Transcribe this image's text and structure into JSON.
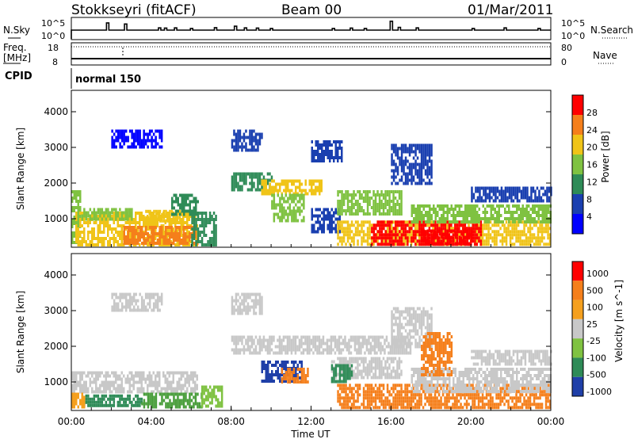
{
  "header": {
    "station": "Stokkseyri (fitACF)",
    "beam": "Beam 00",
    "date": "01/Mar/2011"
  },
  "chart_data": [
    {
      "type": "line",
      "panel": "nsky-nsearch",
      "left_label": "N.Sky",
      "right_label": "N.Search",
      "left_ticks": [
        "10^5",
        "10^0"
      ],
      "right_ticks": [
        "10^5",
        "10^0"
      ],
      "x_range_hours": [
        0,
        24
      ],
      "spike_hours": [
        1.8,
        2.7,
        4.4,
        4.7,
        5.2,
        6.0,
        7.2,
        8.2,
        8.7,
        9.3,
        10.0,
        13.1,
        14.0,
        14.7,
        16.0,
        16.4,
        17.3,
        20.1,
        21.7,
        23.4
      ],
      "spike_heights": [
        0.65,
        0.55,
        0.2,
        0.18,
        0.2,
        0.15,
        0.22,
        0.35,
        0.2,
        0.18,
        0.15,
        0.15,
        0.18,
        0.15,
        0.8,
        0.25,
        0.2,
        0.15,
        0.2,
        0.15
      ]
    },
    {
      "type": "line",
      "panel": "freq-nave",
      "left_label": "Freq.",
      "left_unit": "[MHz]",
      "left_ticks": [
        "18",
        "8"
      ],
      "right_label": "Nave",
      "right_ticks": [
        "80",
        "0"
      ]
    },
    {
      "type": "table",
      "panel": "cpid",
      "label": "CPID",
      "program": "normal 150"
    },
    {
      "type": "heatmap",
      "panel": "power",
      "ylabel": "Slant Range [km]",
      "ylim": [
        200,
        4600
      ],
      "yticks": [
        "1000",
        "2000",
        "3000",
        "4000"
      ],
      "xlim_hours": [
        0,
        24
      ],
      "colorbar_label": "Power [dB]",
      "colorbar_ticks": [
        "4",
        "8",
        "12",
        "16",
        "20",
        "24",
        "28"
      ],
      "colorbar_range": [
        0,
        30
      ],
      "colors": [
        "#0000ff",
        "#1a3fb0",
        "#2e8b57",
        "#7fc241",
        "#f0c418",
        "#f57f1b",
        "#ff0000"
      ],
      "regions": [
        {
          "t0": 0.0,
          "t1": 0.4,
          "r0": 300,
          "r1": 1800,
          "v": 16
        },
        {
          "t0": 0.2,
          "t1": 6.3,
          "r0": 300,
          "r1": 1200,
          "v": 18
        },
        {
          "t0": 2.6,
          "t1": 6.3,
          "r0": 300,
          "r1": 800,
          "v": 25
        },
        {
          "t0": 0.5,
          "t1": 3.0,
          "r0": 1000,
          "r1": 1300,
          "v": 14
        },
        {
          "t0": 3.5,
          "t1": 5.5,
          "r0": 900,
          "r1": 1250,
          "v": 19
        },
        {
          "t0": 5.0,
          "t1": 6.3,
          "r0": 1100,
          "r1": 1700,
          "v": 9
        },
        {
          "t0": 6.0,
          "t1": 7.2,
          "r0": 300,
          "r1": 1200,
          "v": 10
        },
        {
          "t0": 8.0,
          "t1": 10.0,
          "r0": 1800,
          "r1": 2300,
          "v": 9
        },
        {
          "t0": 9.5,
          "t1": 12.5,
          "r0": 1700,
          "r1": 2100,
          "v": 18
        },
        {
          "t0": 10.0,
          "t1": 11.6,
          "r0": 900,
          "r1": 1700,
          "v": 15
        },
        {
          "t0": 12.0,
          "t1": 13.4,
          "r0": 600,
          "r1": 1300,
          "v": 8
        },
        {
          "t0": 13.3,
          "t1": 16.5,
          "r0": 1100,
          "r1": 1800,
          "v": 17
        },
        {
          "t0": 13.3,
          "t1": 24.0,
          "r0": 300,
          "r1": 950,
          "v": 20
        },
        {
          "t0": 15.0,
          "t1": 20.5,
          "r0": 300,
          "r1": 950,
          "v": 26
        },
        {
          "t0": 17.5,
          "t1": 20.0,
          "r0": 300,
          "r1": 700,
          "v": 29
        },
        {
          "t0": 17.0,
          "t1": 24.0,
          "r0": 900,
          "r1": 1400,
          "v": 15
        },
        {
          "t0": 16.0,
          "t1": 18.0,
          "r0": 2000,
          "r1": 3100,
          "v": 7
        },
        {
          "t0": 8.0,
          "t1": 9.5,
          "r0": 2900,
          "r1": 3500,
          "v": 6
        },
        {
          "t0": 2.0,
          "t1": 4.5,
          "r0": 3000,
          "r1": 3500,
          "v": 4
        },
        {
          "t0": 12.0,
          "t1": 13.5,
          "r0": 2600,
          "r1": 3200,
          "v": 8
        },
        {
          "t0": 20.0,
          "t1": 24.0,
          "r0": 1500,
          "r1": 1900,
          "v": 6
        }
      ]
    },
    {
      "type": "heatmap",
      "panel": "velocity",
      "ylabel": "Slant Range [km]",
      "ylim": [
        200,
        4600
      ],
      "yticks": [
        "1000",
        "2000",
        "3000",
        "4000"
      ],
      "xlim_hours": [
        0,
        24
      ],
      "xticks": [
        "00:00",
        "04:00",
        "08:00",
        "12:00",
        "16:00",
        "20:00",
        "00:00"
      ],
      "xlabel": "Time UT",
      "colorbar_label": "Velocity [m s^-1]",
      "colorbar_ticks": [
        "1000",
        "500",
        "100",
        "25",
        "-25",
        "-100",
        "-500",
        "-1000"
      ],
      "colors": [
        "#1f3fa8",
        "#2e8b57",
        "#7fc241",
        "#c8c8c8",
        "#f5a01e",
        "#f57f1b",
        "#ff0000"
      ],
      "regions": [
        {
          "t0": 0.0,
          "t1": 6.3,
          "r0": 700,
          "r1": 1300,
          "v": "#c8c8c8"
        },
        {
          "t0": 0.5,
          "t1": 3.5,
          "r0": 300,
          "r1": 650,
          "v": "#2e8b57"
        },
        {
          "t0": 0.0,
          "t1": 0.6,
          "r0": 300,
          "r1": 700,
          "v": "#f5a01e"
        },
        {
          "t0": 3.5,
          "t1": 6.5,
          "r0": 300,
          "r1": 700,
          "v": "#4a9e3c"
        },
        {
          "t0": 6.5,
          "t1": 7.5,
          "r0": 300,
          "r1": 900,
          "v": "#7fc241"
        },
        {
          "t0": 8.0,
          "t1": 17.0,
          "r0": 1800,
          "r1": 2300,
          "v": "#c8c8c8"
        },
        {
          "t0": 9.5,
          "t1": 11.5,
          "r0": 1000,
          "r1": 1600,
          "v": "#1f3fa8"
        },
        {
          "t0": 10.5,
          "t1": 11.8,
          "r0": 1000,
          "r1": 1400,
          "v": "#f57f1b"
        },
        {
          "t0": 13.0,
          "t1": 16.5,
          "r0": 1100,
          "r1": 1700,
          "v": "#c8c8c8"
        },
        {
          "t0": 13.3,
          "t1": 24.0,
          "r0": 300,
          "r1": 950,
          "v": "#f57f1b"
        },
        {
          "t0": 17.0,
          "t1": 24.0,
          "r0": 700,
          "r1": 1400,
          "v": "#c8c8c8"
        },
        {
          "t0": 13.0,
          "t1": 14.0,
          "r0": 1000,
          "r1": 1500,
          "v": "#2e8b57"
        },
        {
          "t0": 8.0,
          "t1": 9.5,
          "r0": 2900,
          "r1": 3500,
          "v": "#c8c8c8"
        },
        {
          "t0": 2.0,
          "t1": 4.5,
          "r0": 3000,
          "r1": 3500,
          "v": "#c8c8c8"
        },
        {
          "t0": 16.0,
          "t1": 18.0,
          "r0": 2000,
          "r1": 3100,
          "v": "#c8c8c8"
        },
        {
          "t0": 17.5,
          "t1": 19.0,
          "r0": 1200,
          "r1": 2400,
          "v": "#f57f1b"
        },
        {
          "t0": 20.0,
          "t1": 24.0,
          "r0": 1500,
          "r1": 1900,
          "v": "#c8c8c8"
        }
      ]
    }
  ]
}
